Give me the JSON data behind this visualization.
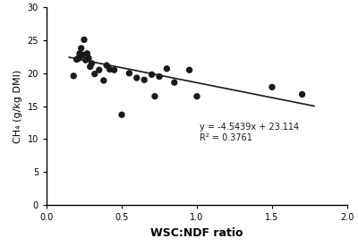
{
  "scatter_x": [
    0.18,
    0.2,
    0.21,
    0.22,
    0.22,
    0.23,
    0.24,
    0.25,
    0.26,
    0.27,
    0.28,
    0.29,
    0.3,
    0.32,
    0.35,
    0.38,
    0.4,
    0.42,
    0.45,
    0.5,
    0.55,
    0.6,
    0.65,
    0.7,
    0.72,
    0.75,
    0.8,
    0.85,
    0.95,
    1.0,
    1.5,
    1.7
  ],
  "scatter_y": [
    19.6,
    22.1,
    22.2,
    23.0,
    22.5,
    23.8,
    22.8,
    25.1,
    22.0,
    23.0,
    22.3,
    21.0,
    21.5,
    19.9,
    20.5,
    18.9,
    21.2,
    20.6,
    20.5,
    13.7,
    20.0,
    19.3,
    19.0,
    19.8,
    16.5,
    19.5,
    20.7,
    18.6,
    20.5,
    16.5,
    17.9,
    16.8
  ],
  "slope": -4.5439,
  "intercept": 23.114,
  "r2": 0.3761,
  "equation_text": "y = -4.5439x + 23.114",
  "r2_text": "R² = 0.3761",
  "xlabel": "WSC:NDF ratio",
  "ylabel": "CH₄ (g/kg DMI)",
  "xlim": [
    0.0,
    2.0
  ],
  "ylim": [
    0,
    30
  ],
  "xticks": [
    0.0,
    0.5,
    1.0,
    1.5,
    2.0
  ],
  "yticks": [
    0,
    5,
    10,
    15,
    20,
    25,
    30
  ],
  "eq_x": 1.02,
  "eq_y": 11.0,
  "marker_size": 28,
  "marker_color": "#1a1a1a",
  "line_color": "#1a1a1a",
  "background_color": "#ffffff",
  "xlabel_fontsize": 9,
  "ylabel_fontsize": 8,
  "tick_fontsize": 7,
  "eq_fontsize": 7
}
